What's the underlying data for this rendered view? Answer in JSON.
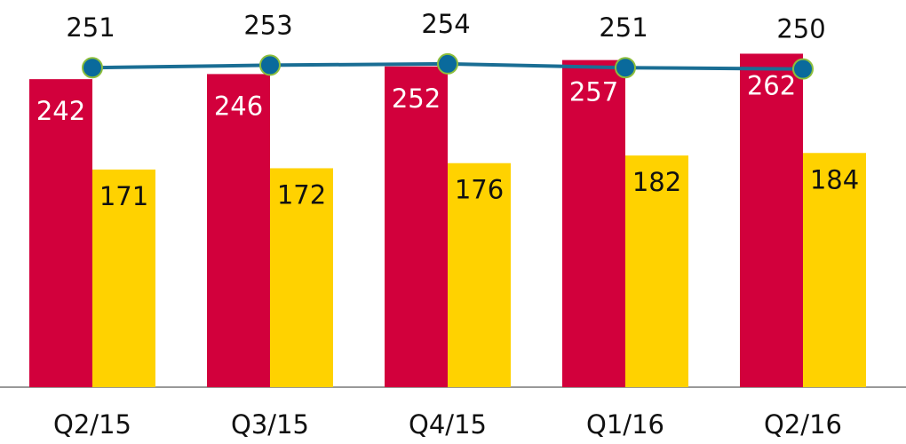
{
  "chart_data": {
    "type": "bar",
    "categories": [
      "Q2/15",
      "Q3/15",
      "Q4/15",
      "Q1/16",
      "Q2/16"
    ],
    "series": [
      {
        "color": "#d2003c",
        "values": [
          242,
          246,
          252,
          257,
          262
        ]
      },
      {
        "color": "#ffd200",
        "values": [
          171,
          172,
          176,
          182,
          184
        ]
      },
      {
        "type": "line",
        "color": "#1a6e94",
        "values": [
          251,
          253,
          254,
          251,
          250
        ]
      }
    ],
    "ylim": [
      0,
      300
    ]
  }
}
